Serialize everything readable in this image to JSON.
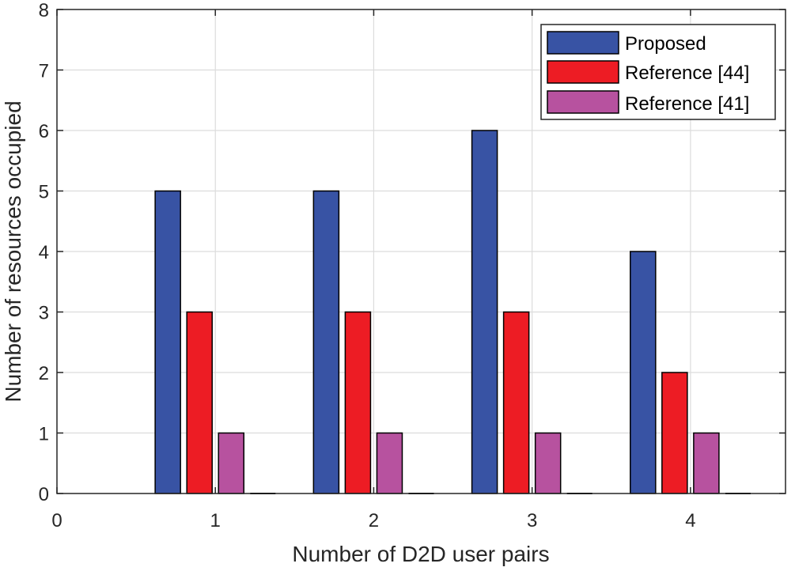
{
  "chart_data": {
    "type": "bar",
    "title": "",
    "xlabel": "Number of D2D user pairs",
    "ylabel": "Number of resources occupied",
    "categories": [
      "1",
      "2",
      "3",
      "4"
    ],
    "x_positions": [
      1,
      2,
      3,
      4
    ],
    "xlim": [
      0,
      4.6
    ],
    "ylim": [
      0,
      8
    ],
    "x_ticks": [
      0,
      1,
      2,
      3,
      4
    ],
    "x_tick_labels": [
      "0",
      "1",
      "2",
      "3",
      "4"
    ],
    "y_ticks": [
      0,
      1,
      2,
      3,
      4,
      5,
      6,
      7,
      8
    ],
    "y_tick_labels": [
      "0",
      "1",
      "2",
      "3",
      "4",
      "5",
      "6",
      "7",
      "8"
    ],
    "grid": true,
    "legend_position": "top-right",
    "series": [
      {
        "name": "Proposed",
        "values": [
          5,
          5,
          6,
          4
        ],
        "color": "#3853a4"
      },
      {
        "name": "Reference [44]",
        "values": [
          3,
          3,
          3,
          2
        ],
        "color": "#ed1c24"
      },
      {
        "name": "Reference [41]",
        "values": [
          1,
          1,
          1,
          1
        ],
        "color": "#b7529f"
      }
    ]
  }
}
